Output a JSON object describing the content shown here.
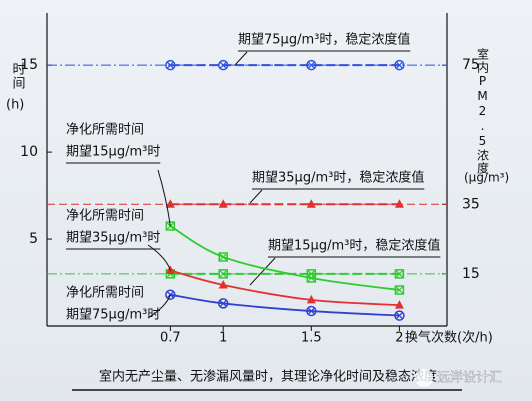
{
  "chart_data": {
    "type": "line",
    "y_label": "时间",
    "y_unit": "(h)",
    "y2_label": "室内PM2.5浓度",
    "y2_unit": "(μg/m³)",
    "x_label": "换气次数(次/h)",
    "caption": "室内无产尘量、无渗漏风量时，其理论净化时间及稳态浓度",
    "watermark": "远洋设计汇",
    "x": [
      0.7,
      1,
      1.5,
      2
    ],
    "xlim": [
      0,
      2.27
    ],
    "xticks": [
      0.7,
      1,
      1.5,
      2
    ],
    "ylim": [
      0,
      18
    ],
    "yticks": [
      5,
      10,
      15
    ],
    "y2lim": [
      0,
      90
    ],
    "y2ticks": [
      15,
      35,
      75
    ],
    "series": [
      {
        "name": "期望15μg/m³时",
        "caption": "净化所需时间",
        "color": "#2ecc2e",
        "marker": "square",
        "values": [
          5.75,
          3.97,
          2.76,
          2.07
        ]
      },
      {
        "name": "期望35μg/m³时",
        "caption": "净化所需时间",
        "color": "#e03030",
        "marker": "triangle",
        "values": [
          3.2,
          2.36,
          1.5,
          1.2
        ]
      },
      {
        "name": "期望75μg/m³时",
        "caption": "净化所需时间",
        "color": "#3040d0",
        "marker": "circle",
        "values": [
          1.8,
          1.3,
          0.86,
          0.6
        ]
      }
    ],
    "reference_lines": [
      {
        "value": 75,
        "label": "期望75μg/m³时，稳定浓度值",
        "color": "#3050e0",
        "marker": "circle"
      },
      {
        "value": 35,
        "label": "期望35μg/m³时，稳定浓度值",
        "color": "#e03030",
        "marker": "triangle"
      },
      {
        "value": 15,
        "label": "期望15μg/m³时，稳定浓度值",
        "color": "#2ecc2e",
        "marker": "square"
      }
    ]
  }
}
